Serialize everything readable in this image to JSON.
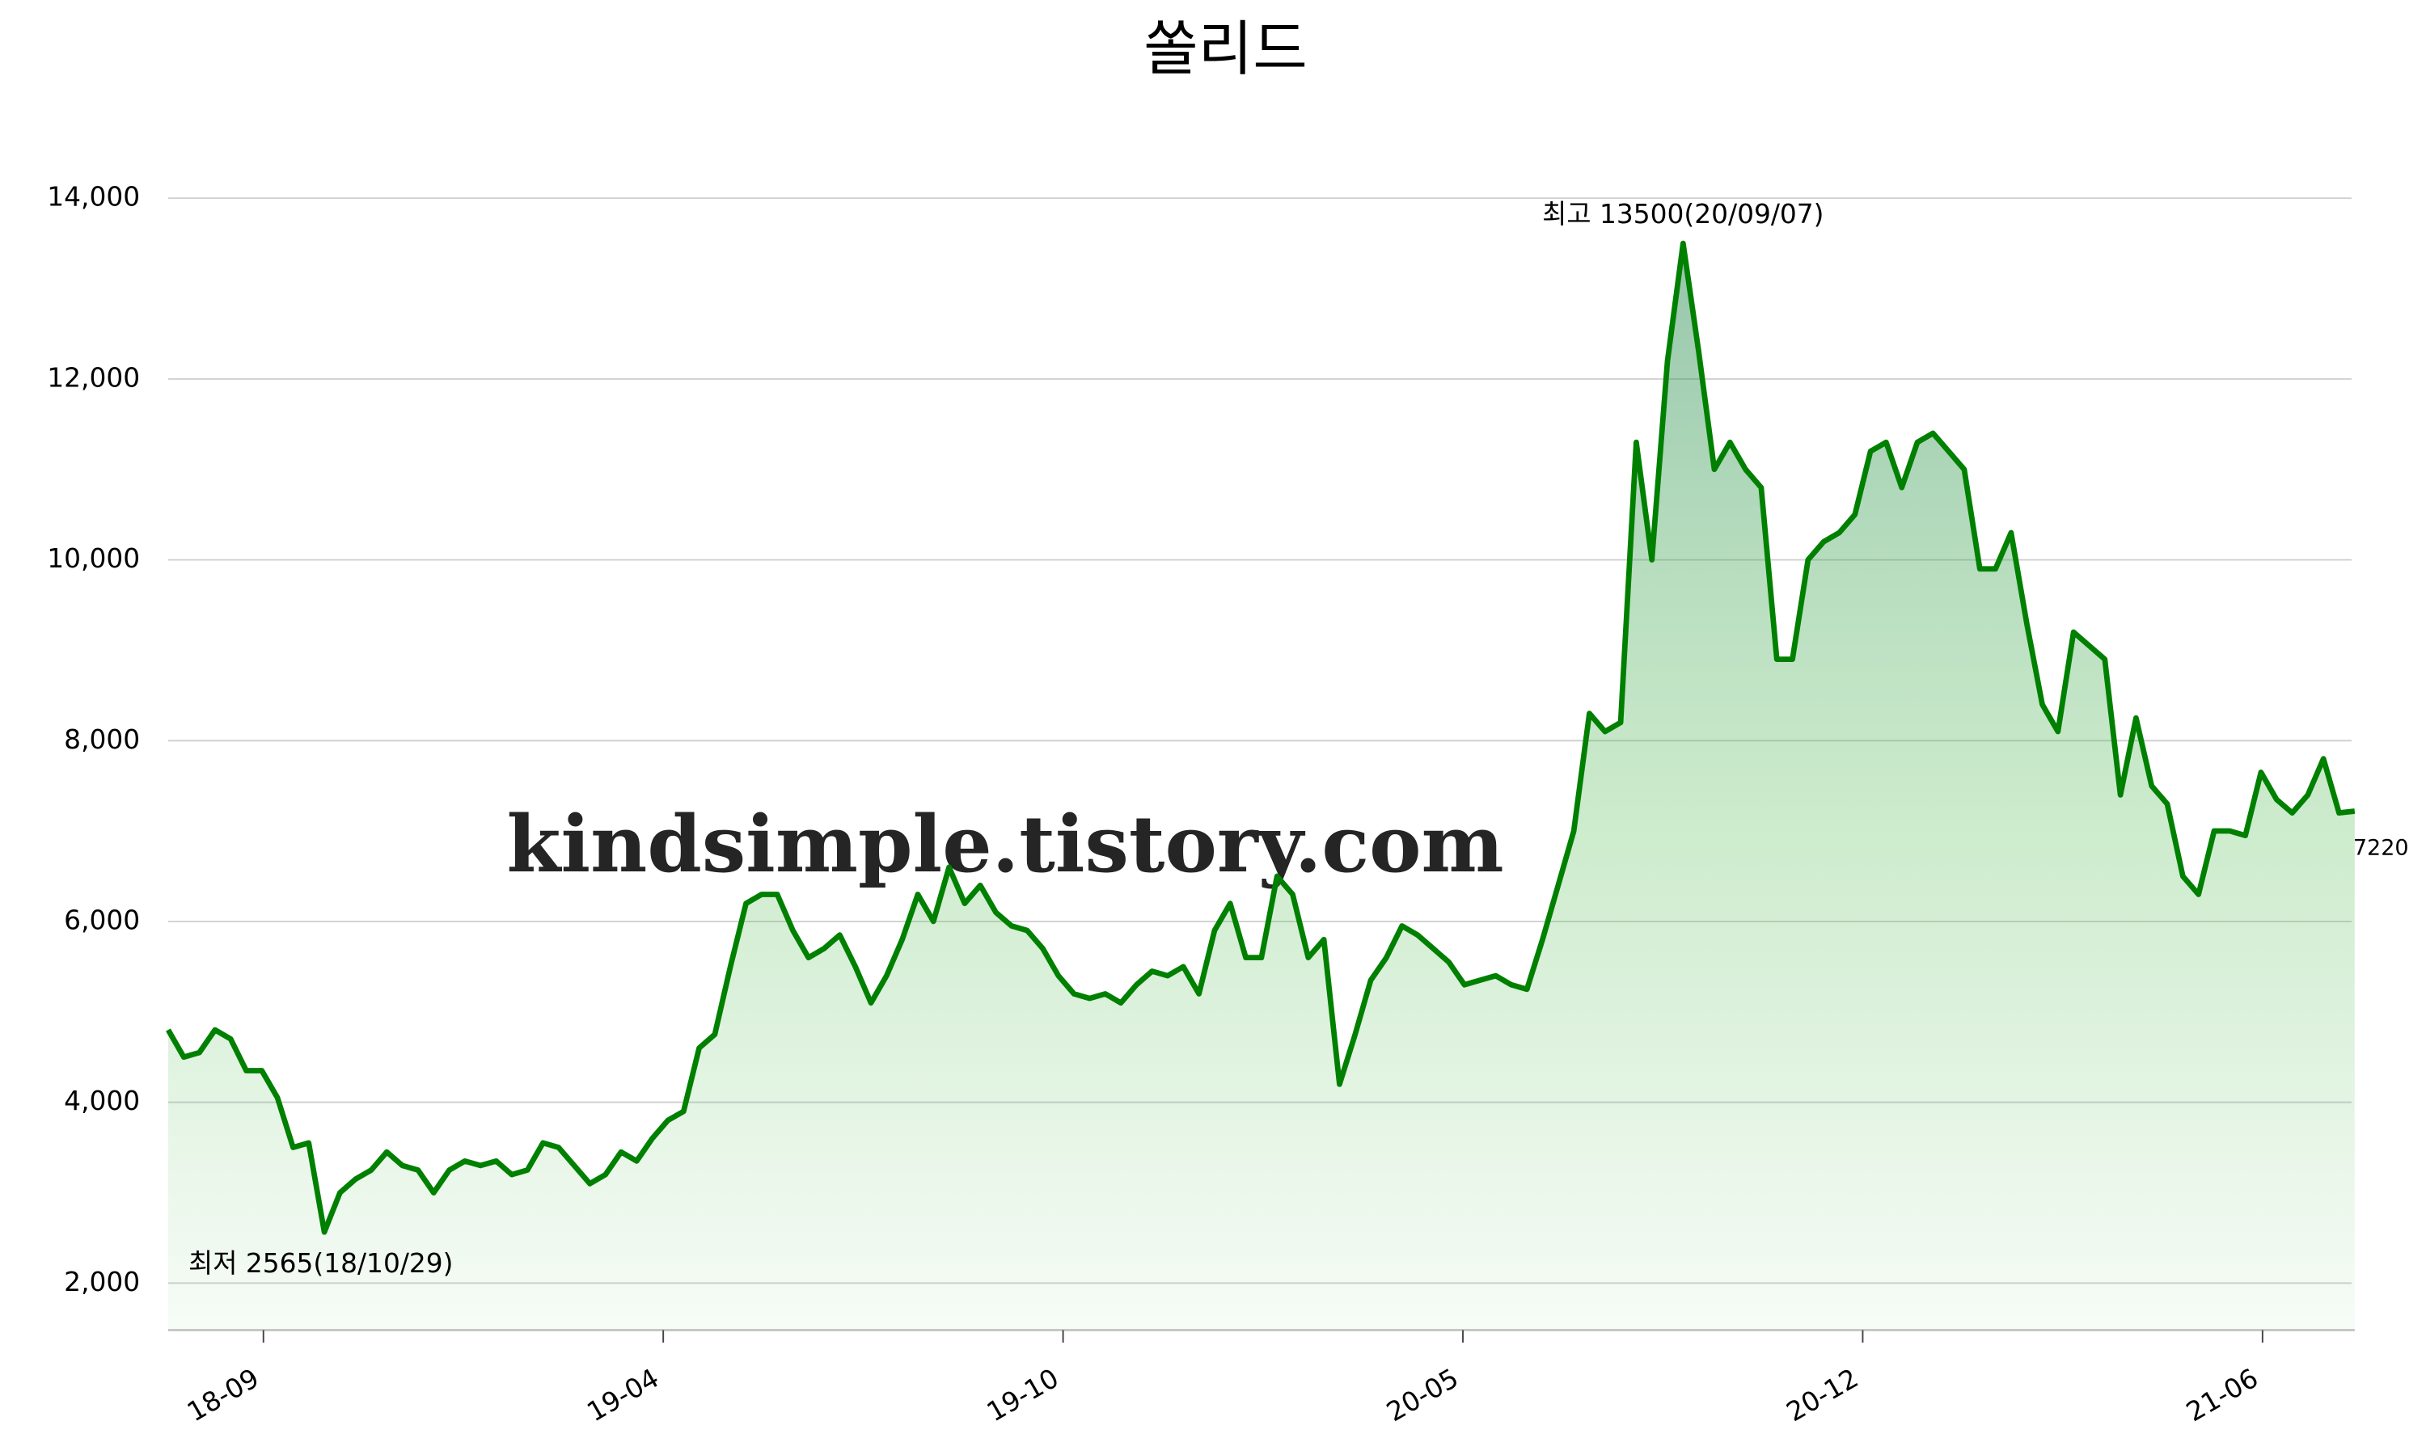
{
  "chart_data": {
    "type": "line",
    "title": "쏠리드",
    "values": [
      4800,
      4500,
      4550,
      4800,
      4700,
      4350,
      4350,
      4050,
      3500,
      3550,
      2565,
      3000,
      3150,
      3250,
      3450,
      3300,
      3250,
      3000,
      3250,
      3350,
      3300,
      3350,
      3200,
      3250,
      3550,
      3500,
      3300,
      3100,
      3200,
      3450,
      3350,
      3600,
      3800,
      3900,
      4600,
      4750,
      5500,
      6200,
      6300,
      6300,
      5900,
      5600,
      5700,
      5850,
      5500,
      5100,
      5400,
      5800,
      6300,
      6000,
      6600,
      6200,
      6400,
      6100,
      5950,
      5900,
      5700,
      5400,
      5200,
      5150,
      5200,
      5100,
      5300,
      5450,
      5400,
      5500,
      5200,
      5900,
      6200,
      5600,
      5600,
      6500,
      6300,
      5600,
      5800,
      4200,
      4750,
      5350,
      5600,
      5950,
      5850,
      5700,
      5550,
      5300,
      5350,
      5400,
      5300,
      5250,
      5800,
      6400,
      7000,
      8300,
      8100,
      8200,
      11300,
      10000,
      12200,
      13500,
      12300,
      11000,
      11300,
      11000,
      10800,
      8900,
      8900,
      10000,
      10200,
      10300,
      10500,
      11200,
      11300,
      10800,
      11300,
      11400,
      11200,
      11000,
      9900,
      9900,
      10300,
      9300,
      8400,
      8100,
      9200,
      9050,
      8900,
      7400,
      8250,
      7500,
      7300,
      6500,
      6300,
      7000,
      7000,
      6950,
      7650,
      7350,
      7200,
      7400,
      7800,
      7200,
      7220
    ],
    "color": "#008000",
    "xlim": [
      0,
      140
    ],
    "xticks": [
      {
        "value": 6.1,
        "label": "18-09"
      },
      {
        "value": 31.7,
        "label": "19-04"
      },
      {
        "value": 57.3,
        "label": "19-10"
      },
      {
        "value": 82.9,
        "label": "20-05"
      },
      {
        "value": 108.5,
        "label": "20-12"
      },
      {
        "value": 134.1,
        "label": "21-06"
      }
    ],
    "ylim": [
      1480,
      14500
    ],
    "yticks": [
      {
        "value": 2000,
        "label": "2,000"
      },
      {
        "value": 4000,
        "label": "4,000"
      },
      {
        "value": 6000,
        "label": "6,000"
      },
      {
        "value": 8000,
        "label": "8,000"
      },
      {
        "value": 10000,
        "label": "10,000"
      },
      {
        "value": 12000,
        "label": "12,000"
      },
      {
        "value": 14000,
        "label": "14,000"
      }
    ],
    "grid": true,
    "max_label": "최고 13500(20/09/07)",
    "min_label": "최저 2565(18/10/29)",
    "last_label": "7220",
    "watermark": "kindsimple.tistory.com"
  }
}
